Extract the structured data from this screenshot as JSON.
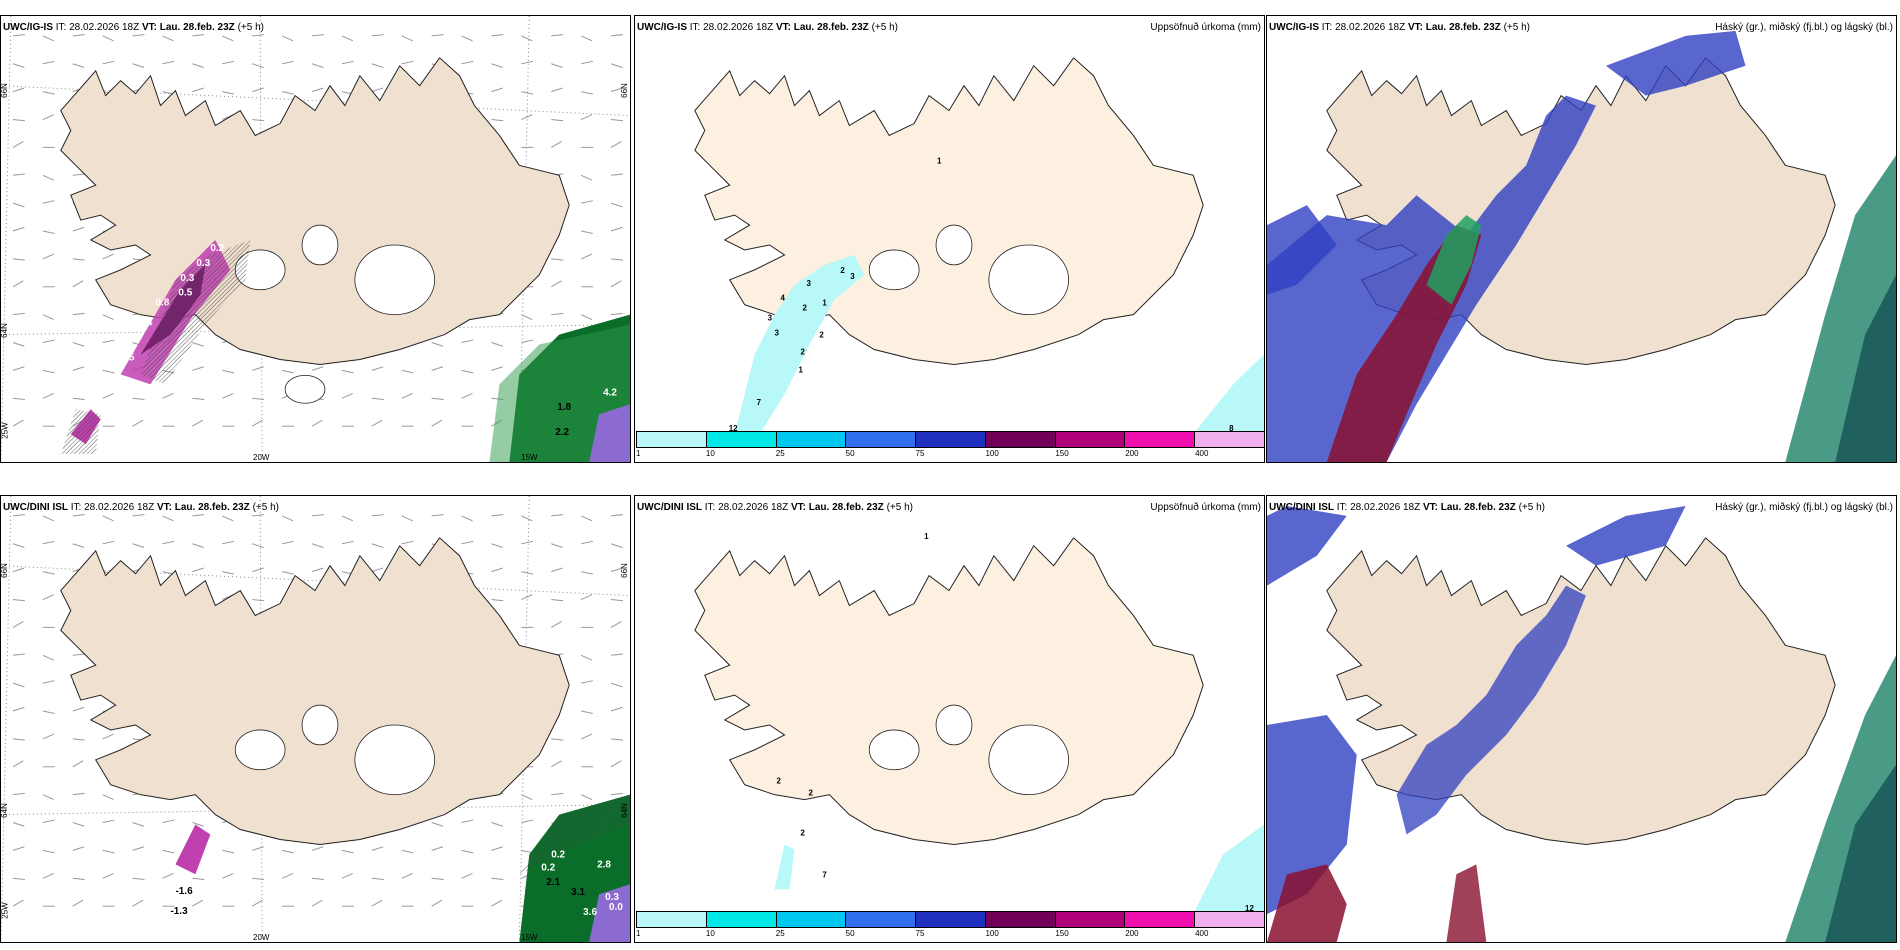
{
  "panels": {
    "r1c1": {
      "model": "UWC/IG-IS",
      "it_label": "IT:",
      "it_value": "28.02.2026 18Z",
      "vt_label": "VT: Lau. 28.feb. 23Z",
      "lead": "(+5 h)"
    },
    "r1c2": {
      "model": "UWC/IG-IS",
      "it_label": "IT:",
      "it_value": "28.02.2026 18Z",
      "vt_label": "VT: Lau. 28.feb. 23Z",
      "lead": "(+5 h)",
      "title": "Uppsöfnuð úrkoma (mm)"
    },
    "r1c3": {
      "model": "UWC/IG-IS",
      "it_label": "IT:",
      "it_value": "28.02.2026 18Z",
      "vt_label": "VT: Lau. 28.feb. 23Z",
      "lead": "(+5 h)",
      "title": "Háský (gr.), miðský (fj.bl.) og lágský (bl.)"
    },
    "r2c1": {
      "model": "UWC/DINI ISL",
      "it_label": "IT:",
      "it_value": "28.02.2026 18Z",
      "vt_label": "VT: Lau. 28.feb. 23Z",
      "lead": "(+5 h)"
    },
    "r2c2": {
      "model": "UWC/DINI ISL",
      "it_label": "IT:",
      "it_value": "28.02.2026 18Z",
      "vt_label": "VT: Lau. 28.feb. 23Z",
      "lead": "(+5 h)",
      "title": "Uppsöfnuð úrkoma (mm)"
    },
    "r2c3": {
      "model": "UWC/DINI ISL",
      "it_label": "IT:",
      "it_value": "28.02.2026 18Z",
      "vt_label": "VT: Lau. 28.feb. 23Z",
      "lead": "(+5 h)",
      "title": "Háský (gr.), miðský (fj.bl.) og lágský (bl.)"
    }
  },
  "axes": {
    "lat_66": "66N",
    "lat_64": "64N",
    "lon_25w": "25W",
    "lon_20w": "20W",
    "lon_15w": "15W"
  },
  "colorbar": {
    "labels": [
      "1",
      "10",
      "25",
      "50",
      "75",
      "100",
      "150",
      "200",
      "400"
    ],
    "colors": [
      "#b8f8f8",
      "#00e8e8",
      "#00c8f0",
      "#3070f0",
      "#2030c0",
      "#700058",
      "#b0007a",
      "#f010b0",
      "#f0b0f0"
    ]
  },
  "precip_labels_r1": [
    "1",
    "2",
    "3",
    "3",
    "4",
    "2",
    "3",
    "1",
    "3",
    "2",
    "2",
    "1",
    "7",
    "12",
    "8"
  ],
  "precip_labels_r2": [
    "1",
    "2",
    "2",
    "2",
    "7",
    "12"
  ],
  "ice_labels_r1": [
    "0.2",
    "0.3",
    "0.5",
    "0.4",
    "0.5",
    "0.8",
    "1.8",
    "4.2",
    "2.2",
    "0.3"
  ],
  "ice_labels_r2": [
    "-1.6",
    "-1.3",
    "0.2",
    "0.2",
    "2.1",
    "2.8",
    "3.1",
    "3.6",
    "0.3",
    "0.0"
  ]
}
